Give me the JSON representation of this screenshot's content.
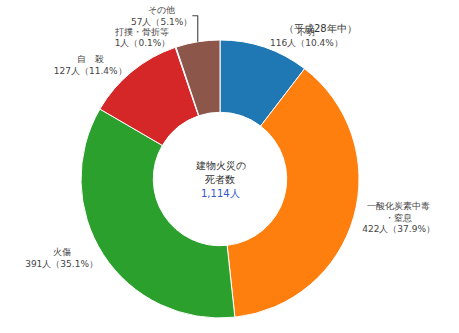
{
  "chart_data": {
    "type": "pie",
    "subtitle": "（平成28年中）",
    "annotations": [
      "建物火災の",
      "死者数",
      "1,114人"
    ],
    "categories": [
      "不明",
      "一酸化炭素中毒\n・窒息",
      "火傷",
      "自　殺",
      "打撲・骨折等",
      "その他"
    ],
    "values": [
      116,
      422,
      391,
      127,
      1,
      57
    ],
    "value_labels": [
      "116人（10.4%）",
      "422人（37.9%）",
      "391人（35.1%）",
      "127人（11.4%）",
      "1人（0.1%）",
      "57人（5.1%）"
    ],
    "data_labels": true
  }
}
